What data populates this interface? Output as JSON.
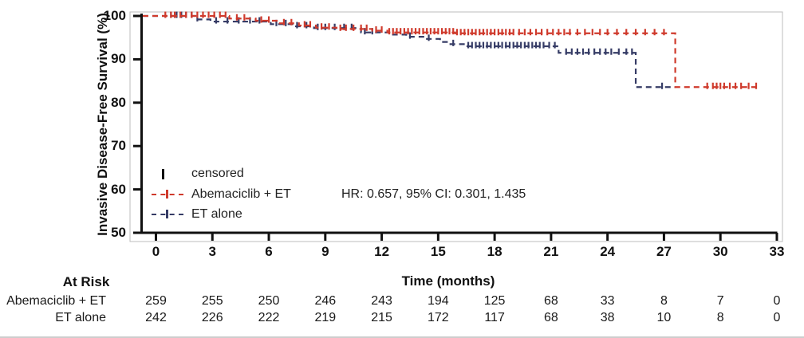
{
  "chart_data": {
    "type": "line",
    "subtype": "kaplan-meier-step",
    "ylabel": "Invasive Disease-Free Survival (%)",
    "xlabel": "Time (months)",
    "xlim": [
      0,
      33
    ],
    "ylim": [
      50,
      100
    ],
    "x_ticks": [
      0,
      3,
      6,
      9,
      12,
      15,
      18,
      21,
      24,
      27,
      30,
      33
    ],
    "y_ticks": [
      100,
      90,
      80,
      70,
      60,
      50
    ],
    "grid": false,
    "legend_position": "inside-lower-left",
    "censored_label": "censored",
    "annotation": "HR: 0.657, 95% CI: 0.301, 1.435",
    "series": [
      {
        "name": "ET alone",
        "color": "#363c66",
        "steps": [
          [
            -0.7,
            100
          ],
          [
            2.1,
            99.2
          ],
          [
            2.9,
            98.7
          ],
          [
            6.1,
            98.1
          ],
          [
            7.3,
            97.6
          ],
          [
            8.4,
            97.2
          ],
          [
            10.9,
            96.2
          ],
          [
            12.4,
            95.7
          ],
          [
            13.3,
            95.2
          ],
          [
            14.3,
            94.7
          ],
          [
            15.1,
            94.0
          ],
          [
            15.6,
            93.5
          ],
          [
            16.5,
            93.0
          ],
          [
            21.4,
            91.5
          ],
          [
            25.5,
            83.6
          ],
          [
            27.6,
            83.6
          ]
        ],
        "censor_ticks": [
          0.8,
          1.1,
          1.35,
          1.6,
          1.9,
          2.2,
          3.2,
          3.8,
          4.4,
          5.0,
          5.5,
          6.4,
          6.9,
          7.5,
          8.0,
          8.6,
          9.0,
          9.5,
          10.0,
          10.4,
          11.1,
          11.5,
          13.5,
          14.5,
          15.8,
          16.6,
          16.8,
          17.0,
          17.2,
          17.4,
          17.6,
          17.8,
          18.0,
          18.2,
          18.4,
          18.6,
          18.8,
          19.0,
          19.2,
          19.4,
          19.6,
          19.8,
          20.0,
          20.2,
          20.4,
          20.6,
          20.9,
          21.2,
          21.8,
          22.1,
          22.4,
          22.7,
          23.0,
          23.3,
          23.6,
          23.9,
          24.2,
          24.6,
          25.0,
          25.3,
          26.9
        ]
      },
      {
        "name": "Abemaciclib + ET",
        "color": "#cf3a2c",
        "steps": [
          [
            -0.7,
            100
          ],
          [
            3.9,
            99.4
          ],
          [
            5.3,
            98.9
          ],
          [
            6.5,
            98.3
          ],
          [
            7.6,
            97.8
          ],
          [
            8.5,
            97.3
          ],
          [
            9.6,
            97.0
          ],
          [
            11.5,
            96.6
          ],
          [
            12.3,
            96.2
          ],
          [
            15.9,
            96.0
          ],
          [
            27.6,
            83.6
          ],
          [
            32.1,
            83.6
          ]
        ],
        "censor_ticks": [
          0.5,
          0.8,
          1.0,
          1.3,
          1.6,
          1.9,
          2.2,
          2.5,
          2.8,
          3.1,
          3.4,
          3.7,
          4.3,
          4.7,
          5.6,
          6.0,
          6.8,
          7.2,
          7.9,
          8.2,
          8.8,
          9.2,
          9.8,
          10.1,
          10.5,
          10.9,
          11.2,
          11.7,
          12.0,
          12.4,
          12.6,
          12.8,
          13.0,
          13.2,
          13.4,
          13.6,
          13.8,
          14.0,
          14.2,
          14.4,
          14.6,
          14.8,
          15.0,
          15.2,
          15.4,
          15.6,
          15.8,
          16.0,
          16.2,
          16.4,
          16.6,
          16.8,
          17.0,
          17.2,
          17.4,
          17.6,
          17.8,
          18.0,
          18.2,
          18.4,
          18.6,
          18.8,
          19.0,
          19.3,
          19.6,
          19.9,
          20.2,
          20.5,
          20.8,
          21.1,
          21.4,
          21.7,
          22.0,
          22.4,
          22.8,
          23.2,
          23.6,
          24.0,
          24.5,
          25.0,
          25.5,
          26.0,
          26.5,
          27.0,
          29.3,
          29.6,
          29.8,
          30.0,
          30.2,
          30.5,
          30.8,
          31.1,
          31.5,
          31.9
        ]
      }
    ],
    "at_risk": {
      "header": "At Risk",
      "time_points": [
        0,
        3,
        6,
        9,
        12,
        15,
        18,
        21,
        24,
        27,
        30,
        33
      ],
      "rows": [
        {
          "label": "Abemaciclib + ET",
          "values": [
            "259",
            "255",
            "250",
            "246",
            "243",
            "194",
            "125",
            "68",
            "33",
            "8",
            "7",
            "0"
          ]
        },
        {
          "label": "ET alone",
          "values": [
            "242",
            "226",
            "222",
            "219",
            "215",
            "172",
            "117",
            "68",
            "38",
            "10",
            "8",
            "0"
          ]
        }
      ]
    }
  }
}
